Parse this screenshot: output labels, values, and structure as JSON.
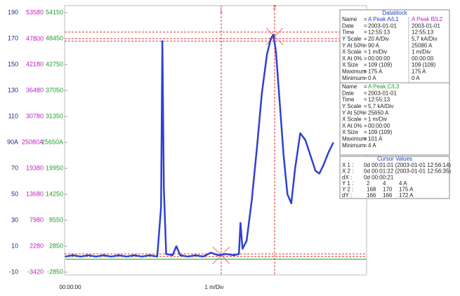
{
  "chart_data": {
    "type": "line",
    "yticks": [
      190,
      170,
      150,
      130,
      110,
      {
        "value": 90,
        "label": "90A"
      },
      70,
      50,
      30,
      10,
      -10
    ],
    "ylim": [
      -10,
      190
    ],
    "y2ticks": [
      53580,
      47800,
      42180,
      36480,
      30780,
      {
        "value": 25080,
        "label": "25080A"
      },
      19380,
      13680,
      7980,
      2280,
      -3420
    ],
    "y2lim": [
      -3420,
      53580
    ],
    "y3ticks": [
      54150,
      48450,
      42750,
      37050,
      31350,
      {
        "value": 25650,
        "label": "25650A"
      },
      19950,
      14250,
      8550,
      2850,
      -2850
    ],
    "y3lim": [
      -2850,
      54150
    ],
    "xlim": [
      0,
      118
    ],
    "x_start_label": "00:00:00",
    "x_label": "1 m/Div",
    "cursor_markers": [
      "1",
      "2"
    ],
    "series": [
      {
        "color": "#3040d0",
        "x": [
          0,
          3,
          6,
          9,
          12,
          15,
          18,
          21,
          24,
          27,
          30,
          33,
          36,
          37.5,
          38,
          38.6,
          39.5,
          42,
          43.5,
          45,
          48,
          51,
          54,
          57,
          60,
          63,
          66,
          68,
          68.6,
          69.4,
          71,
          73,
          75,
          77,
          79,
          80.5,
          81.5,
          82.5,
          84,
          85.5,
          87,
          88.5,
          90,
          92,
          94,
          96,
          98,
          99.5,
          101,
          103,
          105
        ],
        "values": [
          2,
          3,
          2,
          3,
          2,
          3,
          2,
          3,
          2,
          3,
          2,
          3,
          2,
          40,
          168,
          55,
          4,
          3,
          10,
          3,
          2,
          3,
          2,
          5,
          3,
          4,
          3,
          4,
          28,
          8,
          14,
          45,
          85,
          128,
          158,
          170,
          173,
          160,
          120,
          80,
          50,
          43,
          70,
          97,
          92,
          80,
          68,
          66,
          72,
          82,
          90
        ]
      },
      {
        "color": "#30c040",
        "axis": "y3",
        "x": [
          0,
          118
        ],
        "values": [
          0,
          0
        ]
      }
    ]
  },
  "datablock": {
    "title": "Datablock",
    "blocks": [
      {
        "rows": [
          [
            "Name",
            "=",
            "A Peak A/L1",
            "A Peak B/L2"
          ],
          [
            "Date",
            "=",
            "2003-01-01",
            "2003-01-01"
          ],
          [
            "Time",
            "=",
            "12:55:13",
            "12:55:13"
          ],
          [
            "Y Scale",
            "=",
            "20  A/Div",
            "5,7 kA/Div"
          ],
          [
            "Y At 50%",
            "=",
            "90  A",
            "25080  A"
          ],
          [
            "X Scale",
            "=",
            "1  m/Div",
            "1  m/Div"
          ],
          [
            "X At 0%",
            "=",
            "00:00:00",
            "00:00:00"
          ],
          [
            "X Size",
            "=",
            "109 (109)",
            "109 (109)"
          ],
          [
            "Maximum",
            "=",
            "175  A",
            "175  A"
          ],
          [
            "Minimum",
            "=",
            "0  A",
            "0  A"
          ]
        ]
      },
      {
        "rows": [
          [
            "Name",
            "=",
            "A Peak C/L3"
          ],
          [
            "Date",
            "=",
            "2003-01-01"
          ],
          [
            "Time",
            "=",
            "12:55:13"
          ],
          [
            "Y Scale",
            "=",
            "5,7 kA/Div"
          ],
          [
            "Y At 50%",
            "=",
            "25650  A"
          ],
          [
            "X Scale",
            "=",
            "1  m/Div"
          ],
          [
            "X At 0%",
            "=",
            "00:00:00"
          ],
          [
            "X Size",
            "=",
            "109 (109)"
          ],
          [
            "Maximum",
            "=",
            "101  A"
          ],
          [
            "Minimum",
            "=",
            "4  A"
          ]
        ]
      }
    ]
  },
  "cursor_values": {
    "title": "Cursor Values",
    "rows": [
      [
        "X 1 :",
        "0d 00:01:01 (2003-01-01 12:56:14)"
      ],
      [
        "X 2 :",
        "0d 00:01:22 (2003-01-01 12:56:35)"
      ],
      [
        "dX :",
        "0d 00:00:21"
      ],
      [
        "Y 1 :",
        "2",
        "4",
        "4 A"
      ],
      [
        "Y 2 :",
        "168",
        "170",
        "175 A"
      ],
      [
        "dY :",
        "166",
        "166",
        "172 A"
      ]
    ]
  }
}
